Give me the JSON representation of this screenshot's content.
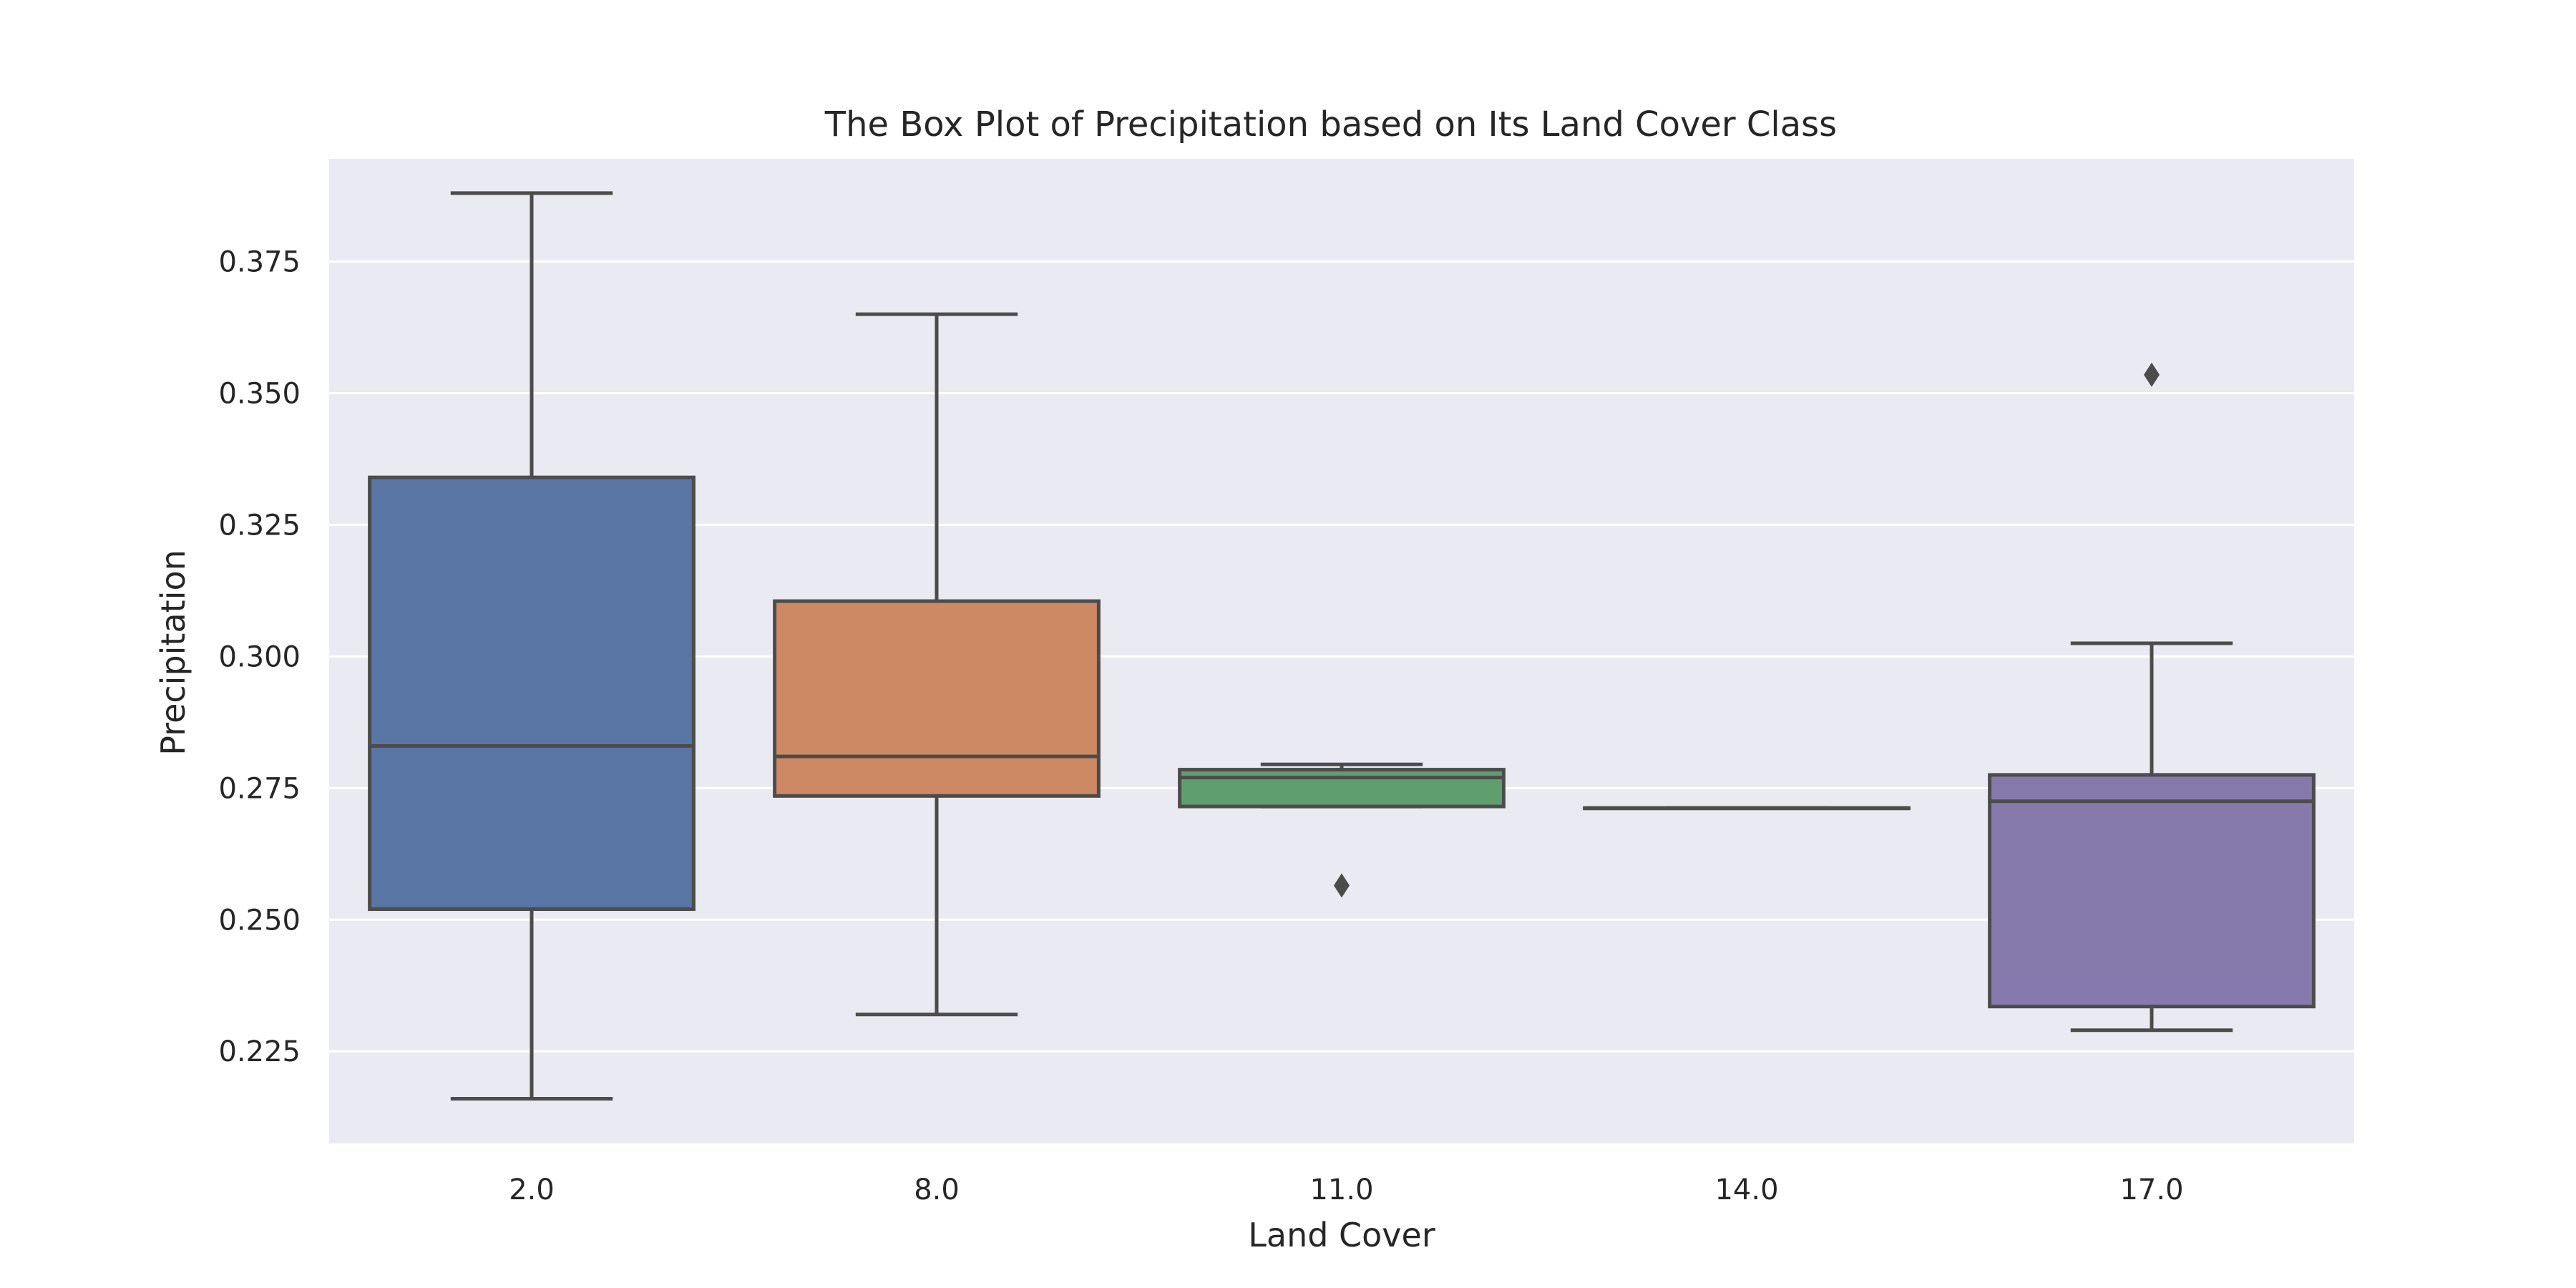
{
  "chart_data": {
    "type": "box",
    "title": "The Box Plot of Precipitation based on Its Land Cover Class",
    "xlabel": "Land Cover",
    "ylabel": "Precipitation",
    "categories": [
      "2.0",
      "8.0",
      "11.0",
      "14.0",
      "17.0"
    ],
    "ylim": [
      0.2075,
      0.3945
    ],
    "yticks": [
      0.225,
      0.25,
      0.275,
      0.3,
      0.325,
      0.35,
      0.375
    ],
    "ytick_labels": [
      "0.225",
      "0.250",
      "0.275",
      "0.300",
      "0.325",
      "0.350",
      "0.375"
    ],
    "grid": true,
    "background": "#eaeaf2",
    "line_color": "#4c4c4c",
    "boxes": [
      {
        "category": "2.0",
        "whisker_low": 0.216,
        "q1": 0.252,
        "median": 0.283,
        "q3": 0.334,
        "whisker_high": 0.388,
        "outliers": [],
        "color": "#5875a4"
      },
      {
        "category": "8.0",
        "whisker_low": 0.232,
        "q1": 0.2735,
        "median": 0.281,
        "q3": 0.3105,
        "whisker_high": 0.365,
        "outliers": [],
        "color": "#cc8963"
      },
      {
        "category": "11.0",
        "whisker_low": 0.2715,
        "q1": 0.2715,
        "median": 0.277,
        "q3": 0.2785,
        "whisker_high": 0.2795,
        "outliers": [
          0.2565
        ],
        "color": "#5f9e6e"
      },
      {
        "category": "14.0",
        "whisker_low": 0.2712,
        "q1": 0.2712,
        "median": 0.2712,
        "q3": 0.2712,
        "whisker_high": 0.2712,
        "outliers": [],
        "color": "#b55d60"
      },
      {
        "category": "17.0",
        "whisker_low": 0.229,
        "q1": 0.2335,
        "median": 0.2725,
        "q3": 0.2775,
        "whisker_high": 0.3025,
        "outliers": [
          0.3535
        ],
        "color": "#857aab"
      }
    ]
  }
}
